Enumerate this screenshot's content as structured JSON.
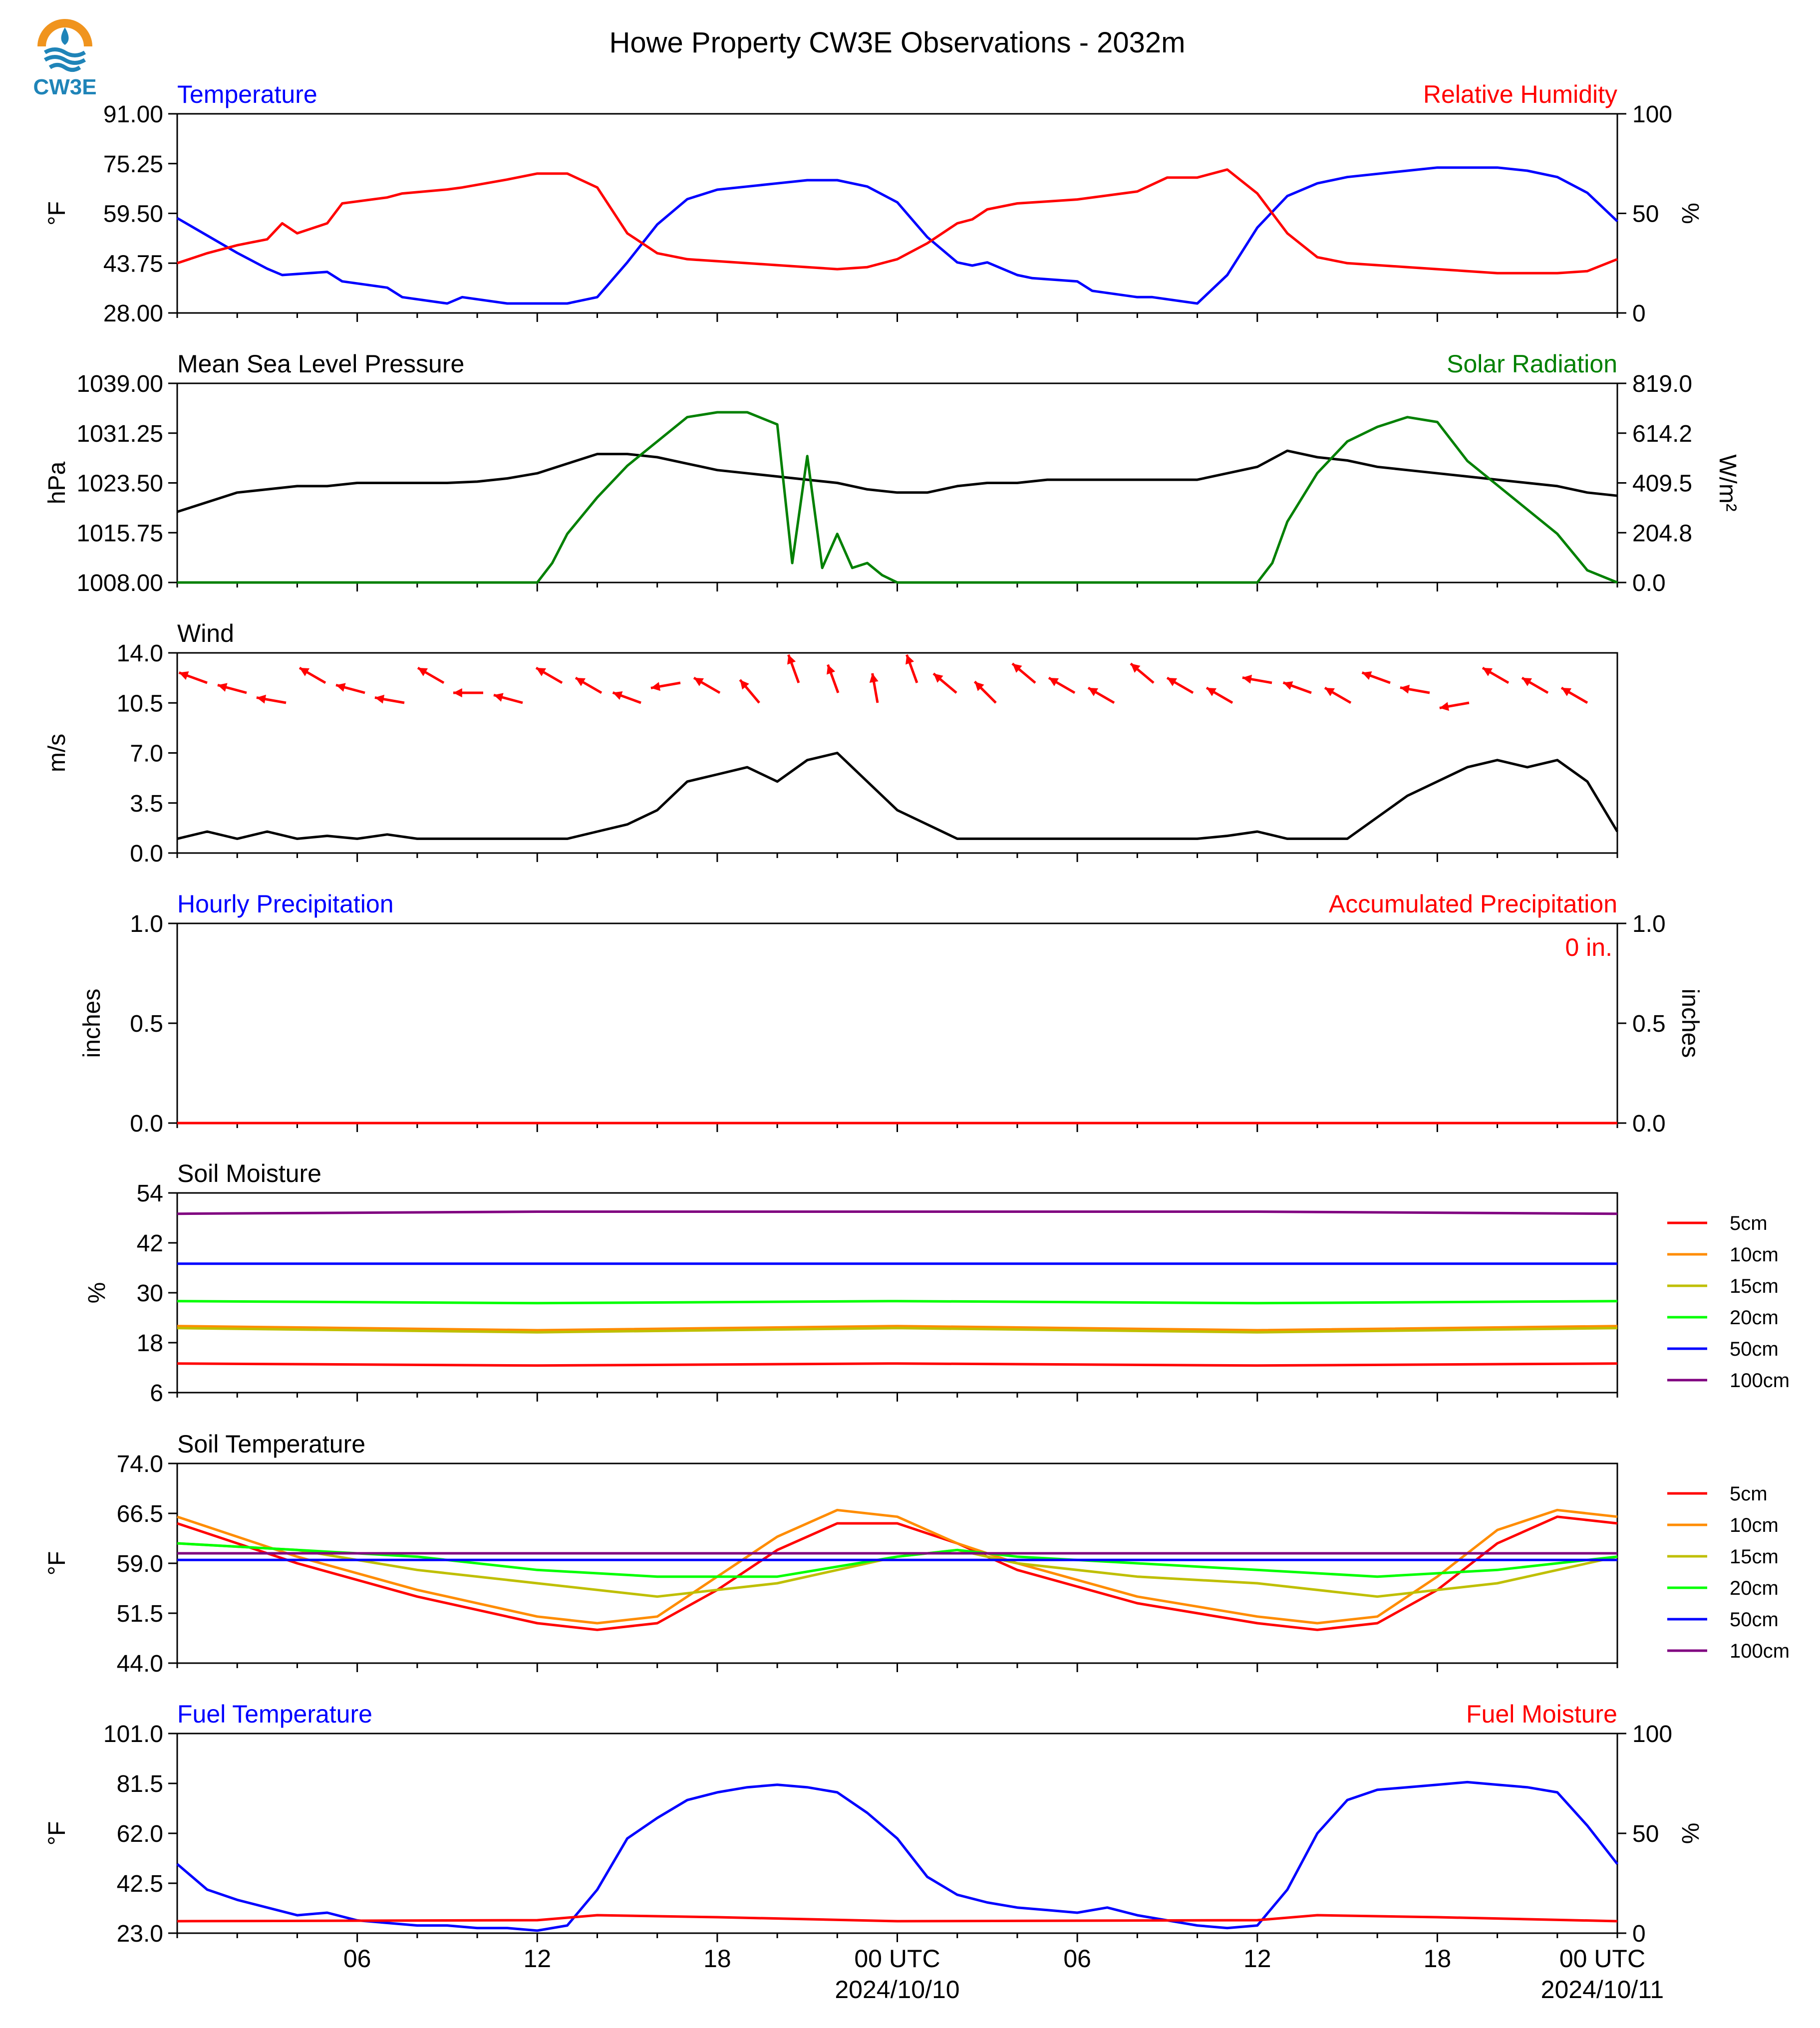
{
  "figure": {
    "title": "Howe Property CW3E Observations - 2032m",
    "logo_text": "CW3E",
    "x_ticks": [
      "06",
      "12",
      "18",
      "00 UTC",
      "06",
      "12",
      "18",
      "00 UTC"
    ],
    "x_dates": [
      "2024/10/10",
      "2024/10/11"
    ]
  },
  "chart_data": [
    {
      "type": "line",
      "id": "temp_rh",
      "left_title": "Temperature",
      "right_title": "Relative Humidity",
      "ylabel": "°F",
      "y2label": "%",
      "ylim": [
        28.0,
        91.0
      ],
      "y2lim": [
        0,
        100
      ],
      "yticks": [
        "28.00",
        "43.75",
        "59.50",
        "75.25",
        "91.00"
      ],
      "y2ticks": [
        "0",
        "50",
        "100"
      ],
      "series": [
        {
          "name": "Temperature",
          "axis": "left",
          "color": "#0000ff",
          "x": [
            0,
            2,
            3,
            3.5,
            5,
            5.5,
            7,
            7.5,
            9,
            9.5,
            11,
            12,
            13,
            14,
            15,
            16,
            17,
            18,
            19,
            20,
            21,
            22,
            23,
            24,
            25,
            26,
            26.5,
            27,
            28,
            28.5,
            30,
            30.5,
            32,
            32.5,
            34,
            35,
            36,
            37,
            38,
            39,
            40,
            41,
            42,
            43,
            44,
            45,
            46,
            47,
            48
          ],
          "y": [
            58,
            47,
            42,
            40,
            41,
            38,
            36,
            33,
            31,
            33,
            31,
            31,
            31,
            33,
            44,
            56,
            64,
            67,
            68,
            69,
            70,
            70,
            68,
            63,
            52,
            44,
            43,
            44,
            40,
            39,
            38,
            35,
            33,
            33,
            31,
            40,
            55,
            65,
            69,
            71,
            72,
            73,
            74,
            74,
            74,
            73,
            71,
            66,
            57
          ]
        },
        {
          "name": "Relative Humidity",
          "axis": "right",
          "color": "#ff0000",
          "x": [
            0,
            1,
            2,
            3,
            3.5,
            4,
            5,
            5.5,
            7,
            7.5,
            9,
            9.5,
            11,
            12,
            13,
            14,
            15,
            16,
            17,
            18,
            19,
            20,
            21,
            22,
            23,
            24,
            25,
            26,
            26.5,
            27,
            28,
            29,
            30,
            30.5,
            32,
            33,
            34,
            35,
            36,
            37,
            38,
            39,
            40,
            41,
            42,
            43,
            44,
            45,
            46,
            47,
            48
          ],
          "y": [
            25,
            30,
            34,
            37,
            45,
            40,
            45,
            55,
            58,
            60,
            62,
            63,
            67,
            70,
            70,
            63,
            40,
            30,
            27,
            26,
            25,
            24,
            23,
            22,
            23,
            27,
            35,
            45,
            47,
            52,
            55,
            56,
            57,
            58,
            61,
            68,
            68,
            72,
            60,
            40,
            28,
            25,
            24,
            23,
            22,
            21,
            20,
            20,
            20,
            21,
            27
          ]
        }
      ]
    },
    {
      "type": "line",
      "id": "pressure_solar",
      "left_title": "Mean Sea Level Pressure",
      "right_title": "Solar Radiation",
      "ylabel": "hPa",
      "y2label": "W/m²",
      "ylim": [
        1008.0,
        1039.0
      ],
      "y2lim": [
        0.0,
        819.0
      ],
      "yticks": [
        "1008.00",
        "1015.75",
        "1023.50",
        "1031.25",
        "1039.00"
      ],
      "y2ticks": [
        "0.0",
        "204.8",
        "409.5",
        "614.2",
        "819.0"
      ],
      "series": [
        {
          "name": "Mean Sea Level Pressure",
          "axis": "left",
          "color": "#000000",
          "x": [
            0,
            2,
            3,
            4,
            5,
            6,
            7,
            8,
            9,
            10,
            11,
            12,
            13,
            14,
            15,
            16,
            17,
            18,
            19,
            20,
            21,
            22,
            23,
            24,
            25,
            26,
            27,
            28,
            29,
            30,
            31,
            32,
            33,
            34,
            35,
            36,
            37,
            38,
            39,
            40,
            41,
            42,
            43,
            44,
            45,
            46,
            47,
            48
          ],
          "y": [
            1019,
            1022,
            1022.5,
            1023,
            1023,
            1023.5,
            1023.5,
            1023.5,
            1023.5,
            1023.7,
            1024.2,
            1025,
            1026.5,
            1028,
            1028,
            1027.5,
            1026.5,
            1025.5,
            1025,
            1024.5,
            1024,
            1023.5,
            1022.5,
            1022,
            1022,
            1023,
            1023.5,
            1023.5,
            1024,
            1024,
            1024,
            1024,
            1024,
            1024,
            1025,
            1026,
            1028.5,
            1027.5,
            1027,
            1026,
            1025.5,
            1025,
            1024.5,
            1024,
            1023.5,
            1023,
            1022,
            1021.5
          ]
        },
        {
          "name": "Solar Radiation",
          "axis": "right",
          "color": "#008000",
          "x": [
            0,
            12,
            12.5,
            13,
            14,
            15,
            16,
            17,
            18,
            19,
            20,
            20.5,
            21,
            21.5,
            22,
            22.5,
            23,
            23.5,
            24,
            36,
            36.5,
            37,
            38,
            39,
            40,
            41,
            42,
            43,
            44,
            45,
            46,
            47,
            48
          ],
          "y": [
            0,
            0,
            80,
            200,
            350,
            480,
            580,
            680,
            700,
            700,
            650,
            80,
            520,
            60,
            200,
            60,
            80,
            30,
            0,
            0,
            80,
            250,
            450,
            580,
            640,
            680,
            660,
            500,
            400,
            300,
            200,
            50,
            0
          ]
        }
      ]
    },
    {
      "type": "line",
      "id": "wind",
      "left_title": "Wind",
      "ylabel": "m/s",
      "ylim": [
        0.0,
        14.0
      ],
      "yticks": [
        "0.0",
        "3.5",
        "7.0",
        "10.5",
        "14.0"
      ],
      "series": [
        {
          "name": "Wind",
          "axis": "left",
          "color": "#000000",
          "x": [
            0,
            1,
            2,
            3,
            4,
            5,
            6,
            7,
            8,
            9,
            10,
            11,
            12,
            13,
            14,
            15,
            16,
            17,
            18,
            19,
            20,
            21,
            22,
            23,
            24,
            25,
            26,
            27,
            28,
            29,
            30,
            31,
            32,
            33,
            34,
            35,
            36,
            37,
            38,
            39,
            40,
            41,
            42,
            43,
            44,
            45,
            46,
            47,
            48
          ],
          "y": [
            1,
            1.5,
            1,
            1.5,
            1,
            1.2,
            1,
            1.3,
            1,
            1,
            1,
            1,
            1,
            1,
            1.5,
            2,
            3,
            5,
            5.5,
            6,
            5,
            6.5,
            7,
            5,
            3,
            2,
            1,
            1,
            1,
            1,
            1,
            1,
            1,
            1,
            1,
            1.2,
            1.5,
            1,
            1,
            1,
            2.5,
            4,
            5,
            6,
            6.5,
            6,
            6.5,
            5,
            1.5
          ]
        }
      ],
      "arrows_m_s_direction_deg": [
        290,
        285,
        280,
        300,
        285,
        280,
        300,
        270,
        285,
        300,
        300,
        290,
        260,
        300,
        320,
        340,
        340,
        350,
        340,
        310,
        315,
        310,
        300,
        300,
        310,
        300,
        300,
        280,
        290,
        300,
        290,
        280,
        260,
        300,
        300,
        300
      ]
    },
    {
      "type": "line",
      "id": "precip",
      "left_title": "Hourly Precipitation",
      "right_title": "Accumulated Precipitation",
      "annotation": "0 in.",
      "ylabel": "inches",
      "y2label": "inches",
      "ylim": [
        0.0,
        1.0
      ],
      "y2lim": [
        0.0,
        1.0
      ],
      "yticks": [
        "0.0",
        "0.5",
        "1.0"
      ],
      "y2ticks": [
        "0.0",
        "0.5",
        "1.0"
      ],
      "series": [
        {
          "name": "Hourly Precipitation",
          "axis": "left",
          "color": "#0000ff",
          "x": [
            0,
            48
          ],
          "y": [
            0,
            0
          ]
        },
        {
          "name": "Accumulated Precipitation",
          "axis": "right",
          "color": "#ff0000",
          "x": [
            0,
            48
          ],
          "y": [
            0,
            0
          ]
        }
      ]
    },
    {
      "type": "line",
      "id": "soil_moisture",
      "left_title": "Soil Moisture",
      "ylabel": "%",
      "ylim": [
        6,
        54
      ],
      "yticks": [
        "6",
        "18",
        "30",
        "42",
        "54"
      ],
      "legend": "right",
      "series": [
        {
          "name": "5cm",
          "color": "#ff0000",
          "x": [
            0,
            12,
            24,
            36,
            48
          ],
          "y": [
            13,
            12.5,
            13,
            12.5,
            13
          ]
        },
        {
          "name": "10cm",
          "color": "#ff8c00",
          "x": [
            0,
            12,
            24,
            36,
            48
          ],
          "y": [
            22,
            21,
            22,
            21,
            22
          ]
        },
        {
          "name": "15cm",
          "color": "#bfbf00",
          "x": [
            0,
            12,
            24,
            36,
            48
          ],
          "y": [
            21.5,
            20.5,
            21.5,
            20.5,
            21.5
          ]
        },
        {
          "name": "20cm",
          "color": "#00ff00",
          "x": [
            0,
            12,
            24,
            36,
            48
          ],
          "y": [
            28,
            27.5,
            28,
            27.5,
            28
          ]
        },
        {
          "name": "50cm",
          "color": "#0000ff",
          "x": [
            0,
            12,
            24,
            36,
            48
          ],
          "y": [
            37,
            37,
            37,
            37,
            37
          ]
        },
        {
          "name": "100cm",
          "color": "#800080",
          "x": [
            0,
            12,
            24,
            36,
            48
          ],
          "y": [
            49,
            49.5,
            49.5,
            49.5,
            49
          ]
        }
      ]
    },
    {
      "type": "line",
      "id": "soil_temp",
      "left_title": "Soil Temperature",
      "ylabel": "°F",
      "ylim": [
        44.0,
        74.0
      ],
      "yticks": [
        "44.0",
        "51.5",
        "59.0",
        "66.5",
        "74.0"
      ],
      "legend": "right",
      "series": [
        {
          "name": "5cm",
          "color": "#ff0000",
          "x": [
            0,
            4,
            8,
            12,
            14,
            16,
            18,
            20,
            22,
            24,
            26,
            28,
            32,
            36,
            38,
            40,
            42,
            44,
            46,
            48
          ],
          "y": [
            65,
            59,
            54,
            50,
            49,
            50,
            55,
            61,
            65,
            65,
            62,
            58,
            53,
            50,
            49,
            50,
            55,
            62,
            66,
            65
          ]
        },
        {
          "name": "10cm",
          "color": "#ff8c00",
          "x": [
            0,
            4,
            8,
            12,
            14,
            16,
            18,
            20,
            22,
            24,
            26,
            28,
            32,
            36,
            38,
            40,
            42,
            44,
            46,
            48
          ],
          "y": [
            66,
            60,
            55,
            51,
            50,
            51,
            57,
            63,
            67,
            66,
            62,
            59,
            54,
            51,
            50,
            51,
            57,
            64,
            67,
            66
          ]
        },
        {
          "name": "15cm",
          "color": "#bfbf00",
          "x": [
            0,
            4,
            8,
            12,
            16,
            20,
            24,
            26,
            28,
            32,
            36,
            40,
            44,
            48
          ],
          "y": [
            62,
            61,
            58,
            56,
            54,
            56,
            60,
            61,
            59,
            57,
            56,
            54,
            56,
            60
          ]
        },
        {
          "name": "20cm",
          "color": "#00ff00",
          "x": [
            0,
            4,
            8,
            12,
            16,
            20,
            24,
            26,
            28,
            32,
            36,
            40,
            44,
            48
          ],
          "y": [
            62,
            61,
            60,
            58,
            57,
            57,
            60,
            61,
            60,
            59,
            58,
            57,
            58,
            60
          ]
        },
        {
          "name": "50cm",
          "color": "#0000ff",
          "x": [
            0,
            48
          ],
          "y": [
            59.5,
            59.5
          ]
        },
        {
          "name": "100cm",
          "color": "#800080",
          "x": [
            0,
            48
          ],
          "y": [
            60.5,
            60.5
          ]
        }
      ]
    },
    {
      "type": "line",
      "id": "fuel",
      "left_title": "Fuel Temperature",
      "right_title": "Fuel Moisture",
      "ylabel": "°F",
      "y2label": "%",
      "ylim": [
        23.0,
        101.0
      ],
      "y2lim": [
        0,
        100
      ],
      "yticks": [
        "23.0",
        "42.5",
        "62.0",
        "81.5",
        "101.0"
      ],
      "y2ticks": [
        "0",
        "50",
        "100"
      ],
      "series": [
        {
          "name": "Fuel Temperature",
          "axis": "left",
          "color": "#0000ff",
          "x": [
            0,
            1,
            2,
            3,
            4,
            5,
            6,
            7,
            8,
            9,
            10,
            11,
            12,
            13,
            14,
            15,
            16,
            17,
            18,
            19,
            20,
            21,
            22,
            23,
            24,
            25,
            26,
            27,
            28,
            29,
            30,
            31,
            32,
            33,
            34,
            35,
            36,
            37,
            38,
            39,
            40,
            41,
            42,
            43,
            44,
            45,
            46,
            47,
            48
          ],
          "y": [
            50,
            40,
            36,
            33,
            30,
            31,
            28,
            27,
            26,
            26,
            25,
            25,
            24,
            26,
            40,
            60,
            68,
            75,
            78,
            80,
            81,
            80,
            78,
            70,
            60,
            45,
            38,
            35,
            33,
            32,
            31,
            33,
            30,
            28,
            26,
            25,
            26,
            40,
            62,
            75,
            79,
            80,
            81,
            82,
            81,
            80,
            78,
            65,
            50
          ]
        },
        {
          "name": "Fuel Moisture",
          "axis": "right",
          "color": "#ff0000",
          "x": [
            0,
            12,
            14,
            18,
            24,
            36,
            38,
            42,
            48
          ],
          "y": [
            6,
            6.5,
            9,
            8,
            6,
            6.5,
            9,
            8,
            6
          ]
        }
      ]
    }
  ]
}
